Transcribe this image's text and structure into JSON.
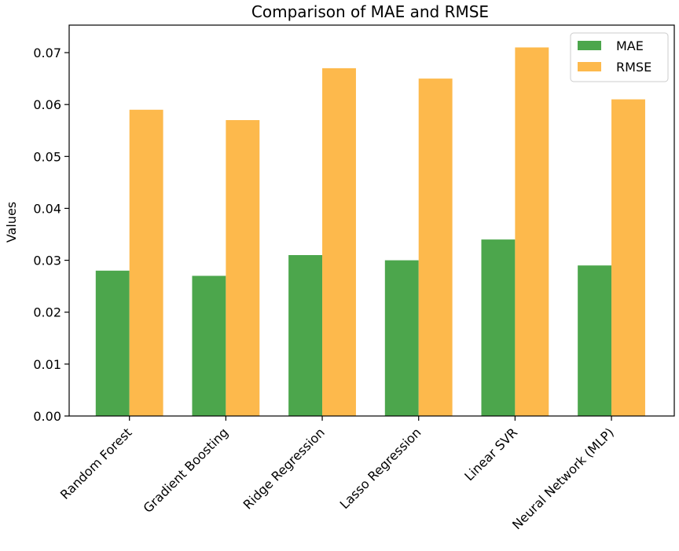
{
  "chart_data": {
    "type": "bar",
    "title": "Comparison of MAE and RMSE",
    "xlabel": "",
    "ylabel": "Values",
    "categories": [
      "Random Forest",
      "Gradient Boosting",
      "Ridge Regression",
      "Lasso Regression",
      "Linear SVR",
      "Neural Network (MLP)"
    ],
    "series": [
      {
        "name": "MAE",
        "values": [
          0.028,
          0.027,
          0.031,
          0.03,
          0.034,
          0.029
        ],
        "color": "#4ca64c"
      },
      {
        "name": "RMSE",
        "values": [
          0.059,
          0.057,
          0.067,
          0.065,
          0.071,
          0.061
        ],
        "color": "#fdb94c"
      }
    ],
    "ylim": [
      0,
      0.0753
    ],
    "yticks": [
      "0.00",
      "0.01",
      "0.02",
      "0.03",
      "0.04",
      "0.05",
      "0.06",
      "0.07"
    ],
    "grid": false,
    "legend_position": "top-right"
  }
}
